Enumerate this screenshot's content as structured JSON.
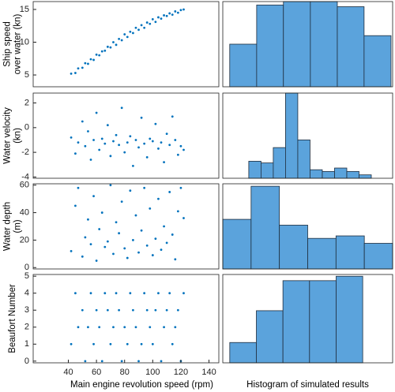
{
  "chart_data": [
    {
      "type": "scatter",
      "ylabel": [
        "Ship speed",
        "over water (kn)"
      ],
      "color": "#0072bd",
      "x": [
        42,
        45,
        47,
        50,
        52,
        54,
        56,
        58,
        60,
        62,
        64,
        66,
        68,
        70,
        72,
        74,
        76,
        78,
        80,
        82,
        84,
        86,
        88,
        90,
        92,
        94,
        96,
        98,
        100,
        102,
        104,
        106,
        108,
        110,
        112,
        114,
        116,
        118,
        120,
        122
      ],
      "y": [
        5.2,
        5.3,
        6.0,
        6.1,
        6.8,
        6.7,
        7.4,
        7.3,
        8.1,
        8.0,
        8.6,
        8.7,
        9.3,
        9.2,
        10.0,
        9.6,
        10.5,
        10.3,
        11.2,
        10.8,
        11.6,
        11.4,
        12.2,
        11.9,
        12.6,
        12.2,
        13.0,
        12.8,
        13.5,
        13.1,
        13.8,
        13.6,
        14.1,
        14.0,
        14.4,
        14.2,
        14.7,
        14.5,
        14.9,
        15.0
      ],
      "xlim": [
        15,
        147
      ],
      "ylim": [
        3.2,
        16.2
      ],
      "yticks": [
        5,
        10,
        15
      ]
    },
    {
      "type": "scatter",
      "ylabel": [
        "Water velocity",
        "(kn)"
      ],
      "color": "#0072bd",
      "x": [
        42,
        45,
        47,
        50,
        52,
        54,
        56,
        58,
        60,
        62,
        64,
        66,
        68,
        70,
        72,
        74,
        76,
        78,
        80,
        82,
        84,
        86,
        88,
        90,
        92,
        94,
        96,
        98,
        100,
        102,
        104,
        106,
        108,
        110,
        112,
        114,
        116,
        118,
        120,
        122
      ],
      "y": [
        -0.8,
        -2.1,
        -1.2,
        0.5,
        -1.5,
        -0.3,
        -2.6,
        -1.0,
        1.2,
        -1.8,
        -0.9,
        -1.3,
        0.2,
        -2.3,
        -1.1,
        -0.6,
        -1.4,
        1.6,
        -2.0,
        -1.2,
        -0.7,
        -3.1,
        -1.0,
        -1.6,
        0.8,
        -1.3,
        -2.4,
        -0.9,
        -1.1,
        0.3,
        -1.7,
        -1.2,
        -2.8,
        -0.5,
        -1.4,
        0.9,
        -1.0,
        -2.2,
        -1.5,
        -1.8
      ],
      "xlim": [
        15,
        147
      ],
      "ylim": [
        -4.1,
        2.8
      ],
      "yticks": [
        -4,
        -2,
        0,
        2
      ]
    },
    {
      "type": "scatter",
      "ylabel": [
        "Water depth",
        "(m)"
      ],
      "color": "#0072bd",
      "x": [
        42,
        45,
        47,
        50,
        52,
        54,
        56,
        58,
        60,
        62,
        64,
        66,
        68,
        70,
        72,
        74,
        76,
        78,
        80,
        82,
        84,
        86,
        88,
        90,
        92,
        94,
        96,
        98,
        100,
        102,
        104,
        106,
        108,
        110,
        112,
        114,
        116,
        118,
        120,
        122
      ],
      "y": [
        12,
        45,
        58,
        8,
        22,
        35,
        17,
        52,
        5,
        28,
        40,
        15,
        19,
        60,
        10,
        33,
        25,
        48,
        14,
        7,
        56,
        20,
        38,
        11,
        27,
        58,
        16,
        43,
        9,
        21,
        50,
        13,
        30,
        18,
        55,
        24,
        6,
        41,
        58,
        36
      ],
      "xlim": [
        15,
        147
      ],
      "ylim": [
        -1,
        61
      ],
      "yticks": [
        0,
        20,
        40,
        60
      ]
    },
    {
      "type": "scatter",
      "ylabel": [
        "Beaufort Number"
      ],
      "color": "#0072bd",
      "xlabel": "Main engine revolution speed (rpm)",
      "x": [
        42,
        45,
        47,
        50,
        52,
        54,
        56,
        58,
        60,
        62,
        64,
        66,
        68,
        70,
        72,
        74,
        76,
        78,
        80,
        82,
        84,
        86,
        88,
        90,
        92,
        94,
        96,
        98,
        100,
        102,
        104,
        106,
        108,
        110,
        112,
        114,
        116,
        118,
        120,
        122
      ],
      "y": [
        1,
        4,
        2,
        3,
        0,
        2,
        4,
        1,
        3,
        2,
        0,
        4,
        3,
        1,
        2,
        4,
        3,
        0,
        2,
        1,
        4,
        3,
        2,
        0,
        1,
        4,
        3,
        2,
        1,
        3,
        4,
        0,
        2,
        3,
        4,
        1,
        2,
        3,
        0,
        4
      ],
      "xlim": [
        15,
        147
      ],
      "ylim": [
        -0.1,
        5.1
      ],
      "xticks": [
        40,
        60,
        80,
        100,
        120,
        140
      ],
      "yticks": [
        0,
        1,
        2,
        3,
        4,
        5
      ]
    },
    {
      "type": "histogram",
      "color": "#5ba3dc",
      "bins": [
        5,
        6.67,
        8.33,
        10,
        11.67,
        13.33,
        15
      ],
      "values": [
        25,
        48,
        50,
        50,
        47,
        30
      ],
      "xlim": [
        4.57,
        15.1
      ],
      "ylim": [
        0,
        50
      ]
    },
    {
      "type": "histogram",
      "color": "#5ba3dc",
      "bins": [
        -2.75,
        -2.25,
        -1.75,
        -1.25,
        -0.75,
        -0.25,
        0.25,
        0.75,
        1.25,
        1.75,
        2.25
      ],
      "values": [
        20,
        18,
        36,
        100,
        45,
        10,
        8,
        12,
        8,
        4
      ],
      "xlim": [
        -3.81,
        3.12
      ],
      "ylim": [
        0,
        100
      ]
    },
    {
      "type": "histogram",
      "color": "#5ba3dc",
      "bins": [
        0,
        10,
        20,
        30,
        40,
        50,
        60
      ],
      "values": [
        60,
        100,
        53,
        37,
        40,
        31
      ],
      "xlim": [
        0,
        60
      ],
      "ylim": [
        0,
        103
      ]
    },
    {
      "type": "histogram",
      "color": "#5ba3dc",
      "xlabel": "Histogram of simulated results",
      "bins": [
        0,
        0.8,
        1.6,
        2.4,
        3.2,
        4.0
      ],
      "values": [
        23,
        59,
        93,
        93,
        98
      ],
      "xlim": [
        -0.21,
        4.9
      ],
      "ylim": [
        0,
        100
      ]
    }
  ]
}
